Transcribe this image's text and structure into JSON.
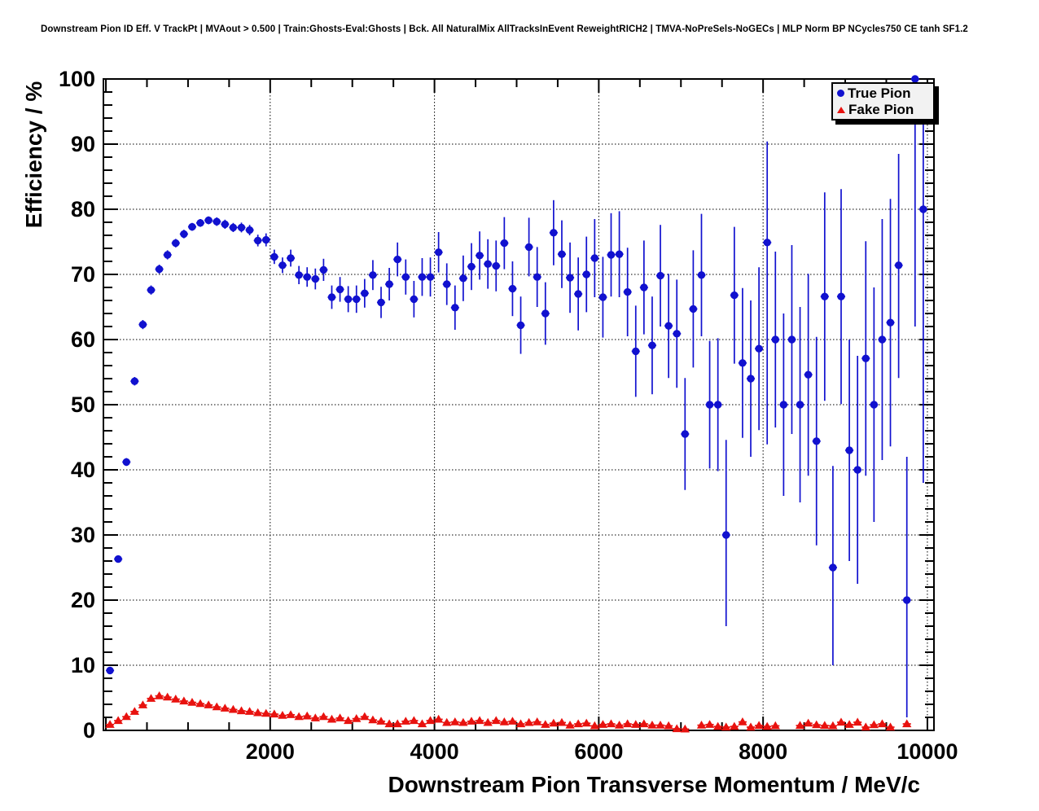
{
  "page": {
    "title": "Downstream Pion ID Eff. V TrackPt | MVAout > 0.500 | Train:Ghosts-Eval:Ghosts | Bck. All NaturalMix AllTracksInEvent ReweightRICH2 | TMVA-NoPreSels-NoGECs | MLP Norm BP NCycles750 CE tanh SF1.2"
  },
  "legend": {
    "entries": [
      {
        "label": "True Pion",
        "marker": "circle-icon",
        "color": "#1111cf"
      },
      {
        "label": "Fake Pion",
        "marker": "triangle-icon",
        "color": "#e8120f"
      }
    ]
  },
  "chart_data": {
    "type": "scatter",
    "title": "",
    "xlabel": "Downstream Pion Transverse Momentum / MeV/c",
    "ylabel": "Efficiency / %",
    "xlim": [
      0,
      10100
    ],
    "ylim": [
      0,
      100
    ],
    "x_major_ticks": [
      2000,
      4000,
      6000,
      8000,
      10000
    ],
    "x_minor_step": 500,
    "y_major_step": 10,
    "y_minor_step": 2,
    "grid": "dotted",
    "legend_position": "top-right",
    "bin_half_width": 50,
    "series": [
      {
        "name": "True Pion",
        "marker": "circle",
        "color": "#1111cf",
        "points_format": [
          "pt_MeV",
          "efficiency_pct",
          "err_low",
          "err_high"
        ],
        "points": [
          [
            50,
            9.2,
            0.4,
            0.4
          ],
          [
            150,
            26.3,
            0.5,
            0.5
          ],
          [
            250,
            41.2,
            0.6,
            0.6
          ],
          [
            350,
            53.6,
            0.65,
            0.65
          ],
          [
            450,
            62.3,
            0.7,
            0.7
          ],
          [
            550,
            67.6,
            0.7,
            0.7
          ],
          [
            650,
            70.8,
            0.7,
            0.7
          ],
          [
            750,
            73.0,
            0.7,
            0.7
          ],
          [
            850,
            74.8,
            0.65,
            0.65
          ],
          [
            950,
            76.2,
            0.65,
            0.65
          ],
          [
            1050,
            77.3,
            0.6,
            0.6
          ],
          [
            1150,
            77.9,
            0.6,
            0.6
          ],
          [
            1250,
            78.3,
            0.6,
            0.6
          ],
          [
            1350,
            78.1,
            0.65,
            0.65
          ],
          [
            1450,
            77.7,
            0.7,
            0.7
          ],
          [
            1550,
            77.2,
            0.7,
            0.7
          ],
          [
            1650,
            77.2,
            0.75,
            0.75
          ],
          [
            1750,
            76.8,
            0.8,
            0.8
          ],
          [
            1850,
            75.2,
            0.9,
            0.9
          ],
          [
            1950,
            75.3,
            1.0,
            1.0
          ],
          [
            2050,
            72.7,
            1.1,
            1.1
          ],
          [
            2150,
            71.4,
            1.2,
            1.2
          ],
          [
            2250,
            72.5,
            1.3,
            1.3
          ],
          [
            2350,
            69.9,
            1.4,
            1.4
          ],
          [
            2450,
            69.6,
            1.5,
            1.5
          ],
          [
            2550,
            69.3,
            1.6,
            1.6
          ],
          [
            2650,
            70.7,
            1.7,
            1.7
          ],
          [
            2750,
            66.5,
            1.8,
            1.8
          ],
          [
            2850,
            67.7,
            1.9,
            1.9
          ],
          [
            2950,
            66.2,
            2.0,
            2.0
          ],
          [
            3050,
            66.2,
            2.1,
            2.1
          ],
          [
            3150,
            67.1,
            2.2,
            2.2
          ],
          [
            3250,
            69.9,
            2.3,
            2.3
          ],
          [
            3350,
            65.7,
            2.4,
            2.4
          ],
          [
            3450,
            68.5,
            2.5,
            2.5
          ],
          [
            3550,
            72.3,
            2.6,
            2.6
          ],
          [
            3650,
            69.6,
            2.7,
            2.7
          ],
          [
            3750,
            66.2,
            2.8,
            2.8
          ],
          [
            3850,
            69.6,
            2.9,
            2.9
          ],
          [
            3950,
            69.6,
            3.0,
            3.0
          ],
          [
            4050,
            73.4,
            3.1,
            3.1
          ],
          [
            4150,
            68.5,
            3.2,
            3.2
          ],
          [
            4250,
            64.9,
            3.4,
            3.4
          ],
          [
            4350,
            69.4,
            3.5,
            3.5
          ],
          [
            4450,
            71.2,
            3.6,
            3.6
          ],
          [
            4550,
            72.9,
            3.7,
            3.7
          ],
          [
            4650,
            71.6,
            3.8,
            3.8
          ],
          [
            4750,
            71.3,
            3.9,
            3.9
          ],
          [
            4850,
            74.8,
            4.0,
            4.0
          ],
          [
            4950,
            67.8,
            4.2,
            4.2
          ],
          [
            5050,
            62.2,
            4.4,
            4.4
          ],
          [
            5150,
            74.2,
            4.5,
            4.5
          ],
          [
            5250,
            69.6,
            4.6,
            4.6
          ],
          [
            5350,
            64.0,
            4.8,
            4.8
          ],
          [
            5450,
            76.4,
            5.0,
            5.0
          ],
          [
            5550,
            73.1,
            5.2,
            5.2
          ],
          [
            5650,
            69.5,
            5.4,
            5.4
          ],
          [
            5750,
            67.0,
            5.6,
            5.6
          ],
          [
            5850,
            70.0,
            5.8,
            5.8
          ],
          [
            5950,
            72.5,
            6.0,
            6.0
          ],
          [
            6050,
            66.5,
            6.2,
            6.2
          ],
          [
            6150,
            73.0,
            6.4,
            6.4
          ],
          [
            6250,
            73.1,
            6.6,
            6.6
          ],
          [
            6350,
            67.3,
            6.8,
            6.8
          ],
          [
            6450,
            58.2,
            7.0,
            7.0
          ],
          [
            6550,
            68.0,
            7.2,
            7.2
          ],
          [
            6650,
            59.1,
            7.5,
            7.5
          ],
          [
            6750,
            69.8,
            7.8,
            7.8
          ],
          [
            6850,
            62.1,
            8.0,
            8.0
          ],
          [
            6950,
            60.9,
            8.3,
            8.3
          ],
          [
            7050,
            45.5,
            8.6,
            8.6
          ],
          [
            7150,
            64.7,
            9.0,
            9.0
          ],
          [
            7250,
            69.9,
            9.4,
            9.4
          ],
          [
            7350,
            50.0,
            9.8,
            9.8
          ],
          [
            7450,
            50.0,
            10.2,
            10.2
          ],
          [
            7550,
            30.0,
            14.0,
            14.6
          ],
          [
            7650,
            66.8,
            10.5,
            10.5
          ],
          [
            7750,
            56.4,
            11.5,
            11.5
          ],
          [
            7850,
            54.0,
            12.0,
            12.0
          ],
          [
            7950,
            58.6,
            12.5,
            12.5
          ],
          [
            8050,
            74.9,
            31.0,
            15.5
          ],
          [
            8150,
            60.0,
            13.5,
            13.5
          ],
          [
            8250,
            50.0,
            14.0,
            14.0
          ],
          [
            8350,
            60.0,
            14.5,
            14.5
          ],
          [
            8450,
            50.0,
            15.0,
            15.0
          ],
          [
            8550,
            54.6,
            15.5,
            15.5
          ],
          [
            8650,
            44.4,
            16.0,
            16.0
          ],
          [
            8750,
            66.6,
            16.0,
            16.0
          ],
          [
            8850,
            25.0,
            15.0,
            15.6
          ],
          [
            8950,
            66.6,
            16.5,
            16.5
          ],
          [
            9050,
            43.0,
            17.0,
            17.0
          ],
          [
            9150,
            40.0,
            17.5,
            17.5
          ],
          [
            9250,
            57.1,
            18.0,
            18.0
          ],
          [
            9350,
            50.0,
            18.0,
            18.0
          ],
          [
            9450,
            60.0,
            18.5,
            18.5
          ],
          [
            9550,
            62.6,
            19.0,
            19.0
          ],
          [
            9650,
            71.4,
            17.3,
            17.1
          ],
          [
            9750,
            20.0,
            18.0,
            22.0
          ],
          [
            9850,
            100.0,
            38.0,
            0.0
          ],
          [
            9950,
            80.0,
            42.0,
            13.0
          ]
        ]
      },
      {
        "name": "Fake Pion",
        "marker": "triangle",
        "color": "#e8120f",
        "points_format": [
          "pt_MeV",
          "efficiency_pct",
          "err"
        ],
        "points": [
          [
            50,
            0.9,
            0.12
          ],
          [
            150,
            1.5,
            0.12
          ],
          [
            250,
            2.1,
            0.12
          ],
          [
            350,
            2.9,
            0.12
          ],
          [
            450,
            3.9,
            0.12
          ],
          [
            550,
            4.9,
            0.12
          ],
          [
            650,
            5.3,
            0.12
          ],
          [
            750,
            5.1,
            0.12
          ],
          [
            850,
            4.8,
            0.12
          ],
          [
            950,
            4.5,
            0.12
          ],
          [
            1050,
            4.3,
            0.12
          ],
          [
            1150,
            4.1,
            0.12
          ],
          [
            1250,
            3.9,
            0.12
          ],
          [
            1350,
            3.6,
            0.12
          ],
          [
            1450,
            3.4,
            0.12
          ],
          [
            1550,
            3.2,
            0.12
          ],
          [
            1650,
            3.0,
            0.12
          ],
          [
            1750,
            2.9,
            0.12
          ],
          [
            1850,
            2.7,
            0.12
          ],
          [
            1950,
            2.6,
            0.12
          ],
          [
            2050,
            2.5,
            0.2
          ],
          [
            2150,
            2.3,
            0.2
          ],
          [
            2250,
            2.4,
            0.2
          ],
          [
            2350,
            2.1,
            0.2
          ],
          [
            2450,
            2.2,
            0.2
          ],
          [
            2550,
            1.9,
            0.2
          ],
          [
            2650,
            2.1,
            0.2
          ],
          [
            2750,
            1.7,
            0.2
          ],
          [
            2850,
            1.9,
            0.2
          ],
          [
            2950,
            1.5,
            0.2
          ],
          [
            3050,
            1.8,
            0.2
          ],
          [
            3150,
            2.1,
            0.2
          ],
          [
            3250,
            1.6,
            0.2
          ],
          [
            3350,
            1.4,
            0.2
          ],
          [
            3450,
            1.0,
            0.2
          ],
          [
            3550,
            1.0,
            0.2
          ],
          [
            3650,
            1.4,
            0.2
          ],
          [
            3750,
            1.5,
            0.2
          ],
          [
            3850,
            1.0,
            0.2
          ],
          [
            3950,
            1.5,
            0.2
          ],
          [
            4050,
            1.7,
            0.2
          ],
          [
            4150,
            1.2,
            0.2
          ],
          [
            4250,
            1.3,
            0.2
          ],
          [
            4350,
            1.2,
            0.2
          ],
          [
            4450,
            1.4,
            0.2
          ],
          [
            4550,
            1.5,
            0.2
          ],
          [
            4650,
            1.2,
            0.2
          ],
          [
            4750,
            1.5,
            0.2
          ],
          [
            4850,
            1.3,
            0.2
          ],
          [
            4950,
            1.4,
            0.2
          ],
          [
            5050,
            1.0,
            0.3
          ],
          [
            5150,
            1.2,
            0.3
          ],
          [
            5250,
            1.3,
            0.3
          ],
          [
            5350,
            0.9,
            0.3
          ],
          [
            5450,
            1.1,
            0.3
          ],
          [
            5550,
            1.2,
            0.3
          ],
          [
            5650,
            0.8,
            0.3
          ],
          [
            5750,
            1.0,
            0.3
          ],
          [
            5850,
            1.1,
            0.3
          ],
          [
            5950,
            0.7,
            0.3
          ],
          [
            6050,
            0.9,
            0.3
          ],
          [
            6150,
            1.0,
            0.3
          ],
          [
            6250,
            0.8,
            0.3
          ],
          [
            6350,
            1.0,
            0.3
          ],
          [
            6450,
            0.9,
            0.3
          ],
          [
            6550,
            1.0,
            0.3
          ],
          [
            6650,
            0.8,
            0.3
          ],
          [
            6750,
            0.8,
            0.3
          ],
          [
            6850,
            0.7,
            0.3
          ],
          [
            6950,
            0.25,
            0.15
          ],
          [
            7050,
            0.2,
            0.15
          ],
          [
            7250,
            0.8,
            0.3
          ],
          [
            7350,
            0.9,
            0.3
          ],
          [
            7450,
            0.6,
            0.3
          ],
          [
            7550,
            0.5,
            0.3
          ],
          [
            7650,
            0.6,
            0.3
          ],
          [
            7750,
            1.3,
            0.4
          ],
          [
            7850,
            0.5,
            0.3
          ],
          [
            7950,
            0.75,
            0.3
          ],
          [
            8050,
            0.6,
            0.3
          ],
          [
            8150,
            0.7,
            0.3
          ],
          [
            8450,
            0.75,
            0.35
          ],
          [
            8550,
            1.1,
            0.4
          ],
          [
            8650,
            0.85,
            0.35
          ],
          [
            8750,
            0.75,
            0.35
          ],
          [
            8850,
            0.7,
            0.35
          ],
          [
            8950,
            1.25,
            0.4
          ],
          [
            9050,
            0.9,
            0.4
          ],
          [
            9150,
            1.25,
            0.4
          ],
          [
            9250,
            0.5,
            0.3
          ],
          [
            9350,
            0.85,
            0.4
          ],
          [
            9450,
            1.0,
            0.4
          ],
          [
            9550,
            0.5,
            0.3
          ],
          [
            9750,
            1.0,
            0.4
          ]
        ]
      }
    ]
  }
}
